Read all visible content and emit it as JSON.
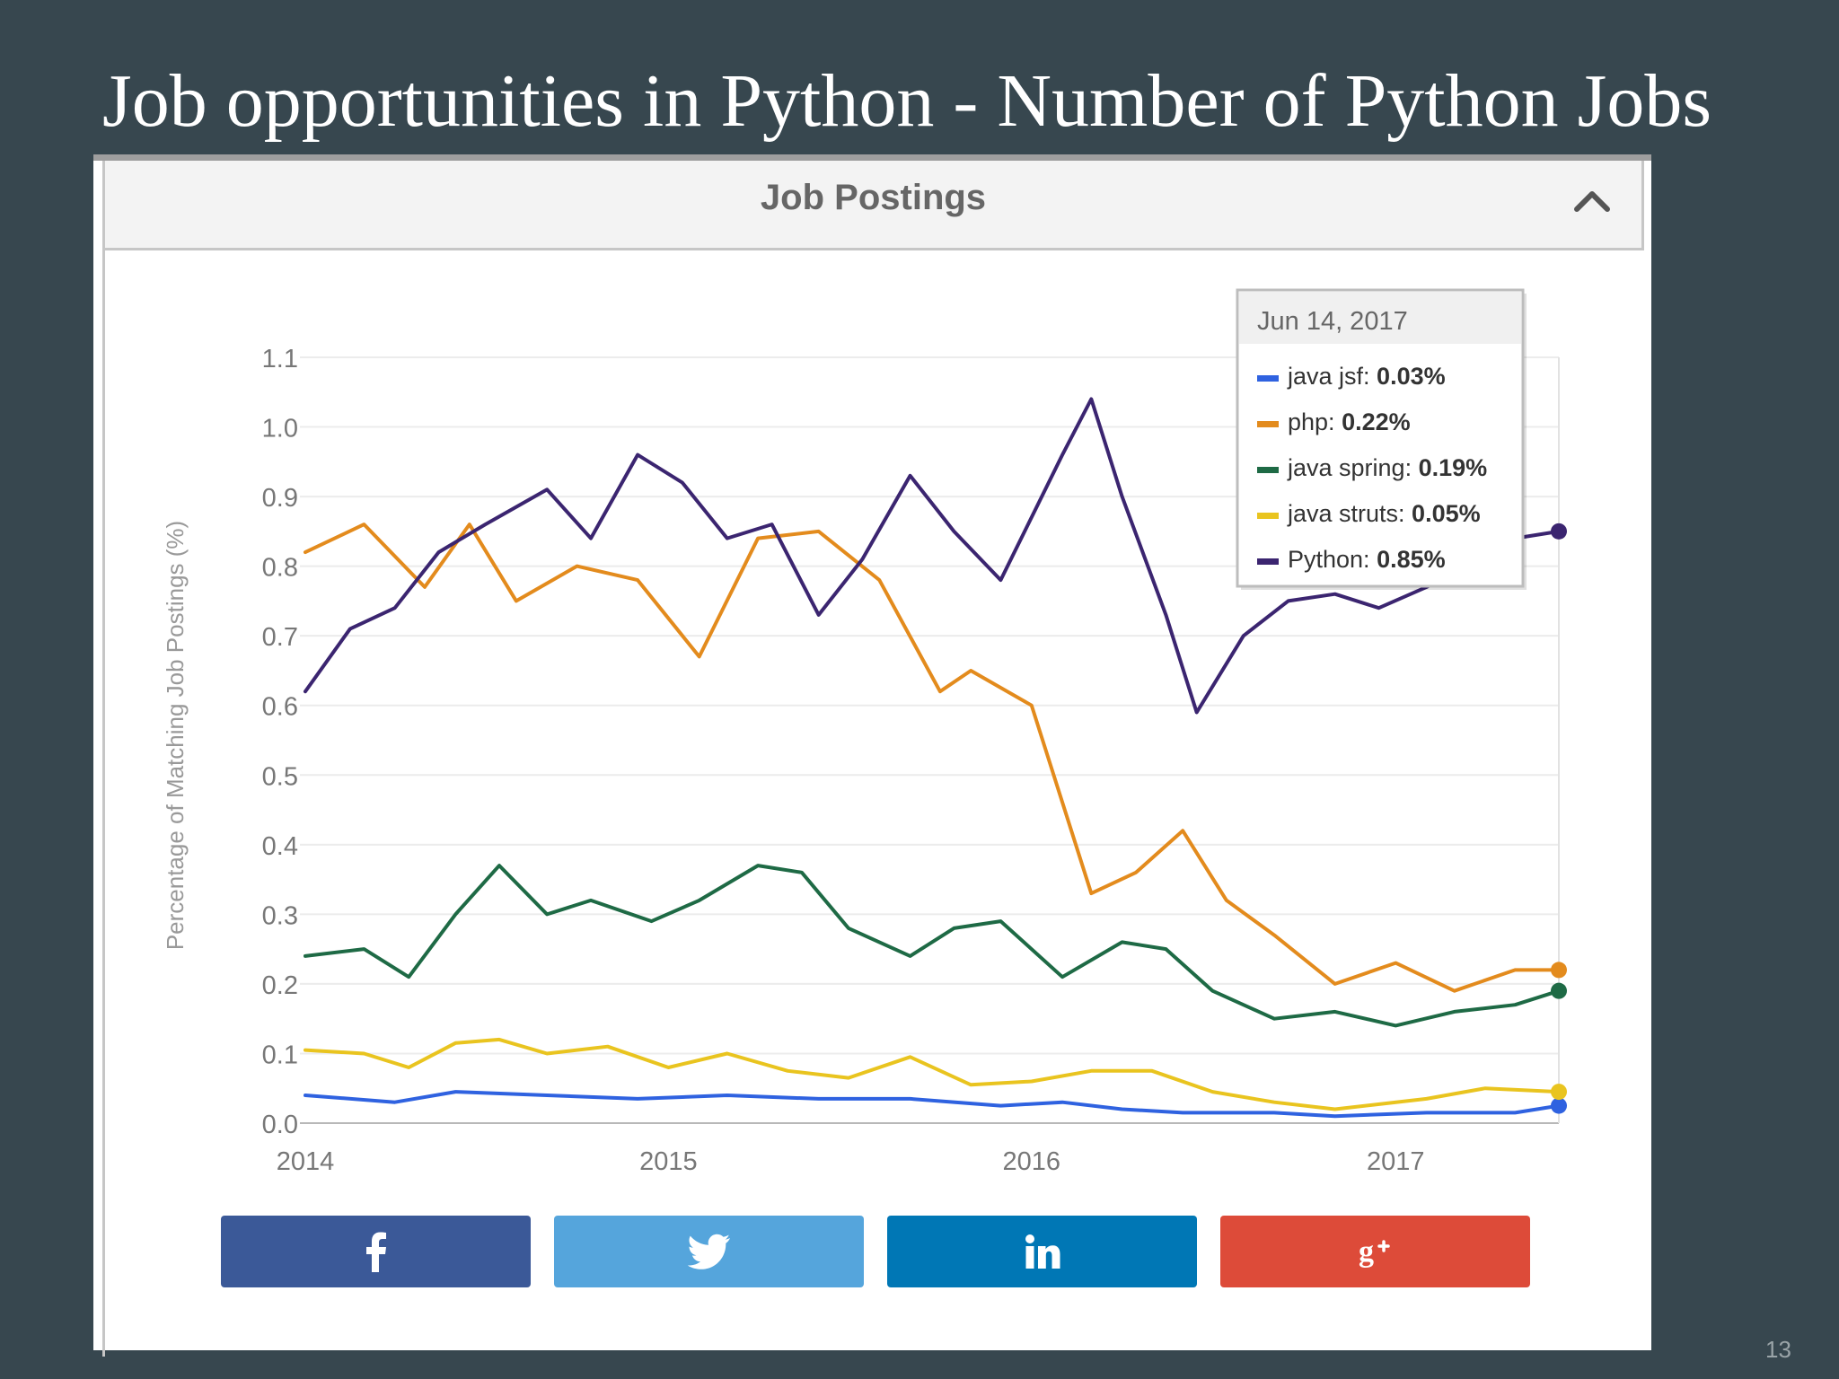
{
  "slide": {
    "title": "Job opportunities in Python - Number of Python Jobs",
    "page_number": "13"
  },
  "panel": {
    "title": "Job Postings",
    "collapse_icon": "chevron-up-icon"
  },
  "share_buttons": [
    {
      "name": "facebook",
      "icon": "facebook-icon",
      "color": "#3b5998"
    },
    {
      "name": "twitter",
      "icon": "twitter-icon",
      "color": "#55a5dc"
    },
    {
      "name": "linkedin",
      "icon": "linkedin-icon",
      "color": "#0077b5"
    },
    {
      "name": "google-plus",
      "icon": "google-plus-icon",
      "color": "#dd4b39"
    }
  ],
  "chart_data": {
    "type": "line",
    "title": "",
    "xlabel": "",
    "ylabel": "Percentage of Matching Job Postings (%)",
    "ylim": [
      0,
      1.1
    ],
    "yticks": [
      "0.0",
      "0.1",
      "0.2",
      "0.3",
      "0.4",
      "0.5",
      "0.6",
      "0.7",
      "0.8",
      "0.9",
      "1.0",
      "1.1"
    ],
    "xlim": [
      "2014-01-01",
      "2017-06-14"
    ],
    "xticks": [
      {
        "date": "2014-01-01",
        "label": "2014"
      },
      {
        "date": "2015-01-01",
        "label": "2015"
      },
      {
        "date": "2016-01-01",
        "label": "2016"
      },
      {
        "date": "2017-01-01",
        "label": "2017"
      }
    ],
    "grid": true,
    "tooltip": {
      "date": "Jun 14, 2017",
      "items": [
        {
          "series": "java jsf",
          "value": "0.03%"
        },
        {
          "series": "php",
          "value": "0.22%"
        },
        {
          "series": "java spring",
          "value": "0.19%"
        },
        {
          "series": "java struts",
          "value": "0.05%"
        },
        {
          "series": "Python",
          "value": "0.85%"
        }
      ]
    },
    "series": [
      {
        "name": "java jsf",
        "color": "#2f62e0",
        "points": [
          [
            "2014-01-01",
            0.04
          ],
          [
            "2014-04-01",
            0.03
          ],
          [
            "2014-06-01",
            0.045
          ],
          [
            "2014-09-01",
            0.04
          ],
          [
            "2014-12-01",
            0.035
          ],
          [
            "2015-03-01",
            0.04
          ],
          [
            "2015-06-01",
            0.035
          ],
          [
            "2015-09-01",
            0.035
          ],
          [
            "2015-12-01",
            0.025
          ],
          [
            "2016-02-01",
            0.03
          ],
          [
            "2016-04-01",
            0.02
          ],
          [
            "2016-06-01",
            0.015
          ],
          [
            "2016-09-01",
            0.015
          ],
          [
            "2016-11-01",
            0.01
          ],
          [
            "2017-02-01",
            0.015
          ],
          [
            "2017-05-01",
            0.015
          ],
          [
            "2017-06-14",
            0.025
          ]
        ]
      },
      {
        "name": "java struts",
        "color": "#e9c41f",
        "points": [
          [
            "2014-01-01",
            0.105
          ],
          [
            "2014-03-01",
            0.1
          ],
          [
            "2014-04-15",
            0.08
          ],
          [
            "2014-06-01",
            0.115
          ],
          [
            "2014-07-15",
            0.12
          ],
          [
            "2014-09-01",
            0.1
          ],
          [
            "2014-11-01",
            0.11
          ],
          [
            "2015-01-01",
            0.08
          ],
          [
            "2015-03-01",
            0.1
          ],
          [
            "2015-05-01",
            0.075
          ],
          [
            "2015-07-01",
            0.065
          ],
          [
            "2015-09-01",
            0.095
          ],
          [
            "2015-11-01",
            0.055
          ],
          [
            "2016-01-01",
            0.06
          ],
          [
            "2016-03-01",
            0.075
          ],
          [
            "2016-05-01",
            0.075
          ],
          [
            "2016-07-01",
            0.045
          ],
          [
            "2016-09-01",
            0.03
          ],
          [
            "2016-11-01",
            0.02
          ],
          [
            "2017-02-01",
            0.035
          ],
          [
            "2017-04-01",
            0.05
          ],
          [
            "2017-06-14",
            0.045
          ]
        ]
      },
      {
        "name": "java spring",
        "color": "#1e6a45",
        "points": [
          [
            "2014-01-01",
            0.24
          ],
          [
            "2014-03-01",
            0.25
          ],
          [
            "2014-04-15",
            0.21
          ],
          [
            "2014-06-01",
            0.3
          ],
          [
            "2014-07-15",
            0.37
          ],
          [
            "2014-09-01",
            0.3
          ],
          [
            "2014-10-15",
            0.32
          ],
          [
            "2014-12-15",
            0.29
          ],
          [
            "2015-02-01",
            0.32
          ],
          [
            "2015-04-01",
            0.37
          ],
          [
            "2015-05-15",
            0.36
          ],
          [
            "2015-07-01",
            0.28
          ],
          [
            "2015-09-01",
            0.24
          ],
          [
            "2015-10-15",
            0.28
          ],
          [
            "2015-12-01",
            0.29
          ],
          [
            "2016-02-01",
            0.21
          ],
          [
            "2016-04-01",
            0.26
          ],
          [
            "2016-05-15",
            0.25
          ],
          [
            "2016-07-01",
            0.19
          ],
          [
            "2016-09-01",
            0.15
          ],
          [
            "2016-11-01",
            0.16
          ],
          [
            "2017-01-01",
            0.14
          ],
          [
            "2017-03-01",
            0.16
          ],
          [
            "2017-05-01",
            0.17
          ],
          [
            "2017-06-14",
            0.19
          ]
        ]
      },
      {
        "name": "php",
        "color": "#e38b1d",
        "points": [
          [
            "2014-01-01",
            0.82
          ],
          [
            "2014-03-01",
            0.86
          ],
          [
            "2014-05-01",
            0.77
          ],
          [
            "2014-06-15",
            0.86
          ],
          [
            "2014-08-01",
            0.75
          ],
          [
            "2014-10-01",
            0.8
          ],
          [
            "2014-12-01",
            0.78
          ],
          [
            "2015-02-01",
            0.67
          ],
          [
            "2015-04-01",
            0.84
          ],
          [
            "2015-06-01",
            0.85
          ],
          [
            "2015-08-01",
            0.78
          ],
          [
            "2015-10-01",
            0.62
          ],
          [
            "2015-11-01",
            0.65
          ],
          [
            "2016-01-01",
            0.6
          ],
          [
            "2016-03-01",
            0.33
          ],
          [
            "2016-04-15",
            0.36
          ],
          [
            "2016-06-01",
            0.42
          ],
          [
            "2016-07-15",
            0.32
          ],
          [
            "2016-09-01",
            0.27
          ],
          [
            "2016-11-01",
            0.2
          ],
          [
            "2017-01-01",
            0.23
          ],
          [
            "2017-03-01",
            0.19
          ],
          [
            "2017-05-01",
            0.22
          ],
          [
            "2017-06-14",
            0.22
          ]
        ]
      },
      {
        "name": "Python",
        "color": "#3b2570",
        "points": [
          [
            "2014-01-01",
            0.62
          ],
          [
            "2014-02-15",
            0.71
          ],
          [
            "2014-04-01",
            0.74
          ],
          [
            "2014-05-15",
            0.82
          ],
          [
            "2014-07-01",
            0.86
          ],
          [
            "2014-09-01",
            0.91
          ],
          [
            "2014-10-15",
            0.84
          ],
          [
            "2014-12-01",
            0.96
          ],
          [
            "2015-01-15",
            0.92
          ],
          [
            "2015-03-01",
            0.84
          ],
          [
            "2015-04-15",
            0.86
          ],
          [
            "2015-06-01",
            0.73
          ],
          [
            "2015-07-15",
            0.81
          ],
          [
            "2015-09-01",
            0.93
          ],
          [
            "2015-10-15",
            0.85
          ],
          [
            "2015-12-01",
            0.78
          ],
          [
            "2016-02-01",
            0.96
          ],
          [
            "2016-03-01",
            1.04
          ],
          [
            "2016-04-01",
            0.9
          ],
          [
            "2016-05-15",
            0.73
          ],
          [
            "2016-06-15",
            0.59
          ],
          [
            "2016-08-01",
            0.7
          ],
          [
            "2016-09-15",
            0.75
          ],
          [
            "2016-11-01",
            0.76
          ],
          [
            "2016-12-15",
            0.74
          ],
          [
            "2017-02-01",
            0.77
          ],
          [
            "2017-03-15",
            0.8
          ],
          [
            "2017-05-01",
            0.84
          ],
          [
            "2017-06-14",
            0.85
          ]
        ]
      }
    ]
  }
}
